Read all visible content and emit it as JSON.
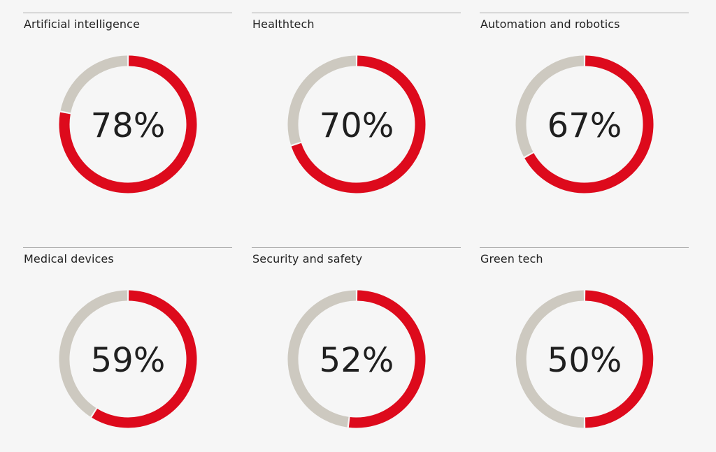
{
  "colors": {
    "filled": "#dd0a1c",
    "remainder": "#cdc9c0",
    "background": "#f6f6f6"
  },
  "chart_data": {
    "type": "pie",
    "items": [
      {
        "label": "Artificial intelligence",
        "value": 78,
        "display": "78%"
      },
      {
        "label": "Healthtech",
        "value": 70,
        "display": "70%"
      },
      {
        "label": "Automation and robotics",
        "value": 67,
        "display": "67%"
      },
      {
        "label": "Medical devices",
        "value": 59,
        "display": "59%"
      },
      {
        "label": "Security and safety",
        "value": 52,
        "display": "52%"
      },
      {
        "label": "Green tech",
        "value": 50,
        "display": "50%"
      }
    ]
  }
}
